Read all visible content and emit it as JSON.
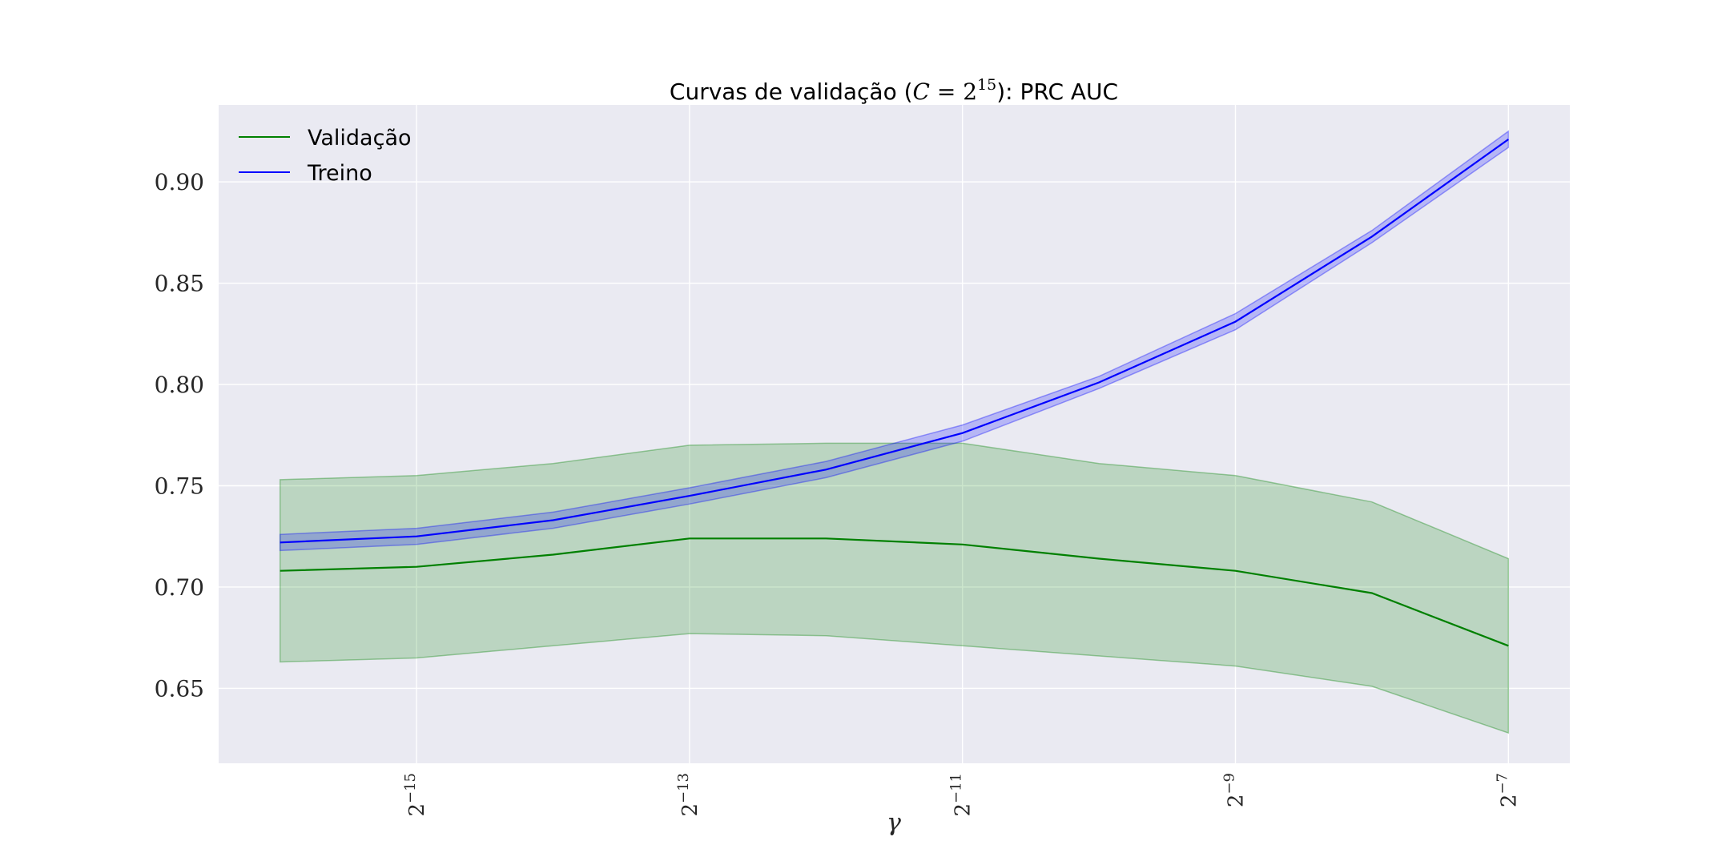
{
  "chart_data": {
    "type": "line",
    "title": {
      "prefix": "Curvas de validação (",
      "math_c": "C",
      "math_eq": " = 2",
      "math_exp": "15",
      "suffix": "): PRC AUC"
    },
    "xlabel": "γ",
    "ylabel": "",
    "x_scale": "log2",
    "x_exponents": [
      -16,
      -15,
      -14,
      -13,
      -12,
      -11,
      -10,
      -9,
      -8,
      -7
    ],
    "xlim_exponent": [
      -16.45,
      -6.55
    ],
    "x_ticks": [
      {
        "exponent": -15,
        "base": "2",
        "sup": "−15"
      },
      {
        "exponent": -13,
        "base": "2",
        "sup": "−13"
      },
      {
        "exponent": -11,
        "base": "2",
        "sup": "−11"
      },
      {
        "exponent": -9,
        "base": "2",
        "sup": "−9"
      },
      {
        "exponent": -7,
        "base": "2",
        "sup": "−7"
      }
    ],
    "ylim": [
      0.613,
      0.938
    ],
    "y_ticks": [
      {
        "value": 0.65,
        "label": "0.65"
      },
      {
        "value": 0.7,
        "label": "0.70"
      },
      {
        "value": 0.75,
        "label": "0.75"
      },
      {
        "value": 0.8,
        "label": "0.80"
      },
      {
        "value": 0.85,
        "label": "0.85"
      },
      {
        "value": 0.9,
        "label": "0.90"
      }
    ],
    "grid": true,
    "legend_position": "top-left",
    "series": [
      {
        "name": "Validação",
        "color": "#008000",
        "band_color": "#008000",
        "band_opacity": 0.2,
        "values": [
          0.708,
          0.71,
          0.716,
          0.724,
          0.724,
          0.721,
          0.714,
          0.708,
          0.697,
          0.671
        ],
        "upper": [
          0.753,
          0.755,
          0.761,
          0.77,
          0.771,
          0.771,
          0.761,
          0.755,
          0.742,
          0.714
        ],
        "lower": [
          0.663,
          0.665,
          0.671,
          0.677,
          0.676,
          0.671,
          0.666,
          0.661,
          0.651,
          0.628
        ]
      },
      {
        "name": "Treino",
        "color": "#0000ff",
        "band_color": "#0000ff",
        "band_opacity": 0.22,
        "values": [
          0.722,
          0.725,
          0.733,
          0.745,
          0.758,
          0.776,
          0.801,
          0.831,
          0.873,
          0.921
        ],
        "upper": [
          0.726,
          0.729,
          0.737,
          0.749,
          0.762,
          0.78,
          0.804,
          0.835,
          0.876,
          0.925
        ],
        "lower": [
          0.718,
          0.721,
          0.729,
          0.741,
          0.754,
          0.772,
          0.798,
          0.827,
          0.87,
          0.917
        ]
      }
    ],
    "colors": {
      "plot_background": "#eaeaf2",
      "grid": "#ffffff"
    }
  }
}
